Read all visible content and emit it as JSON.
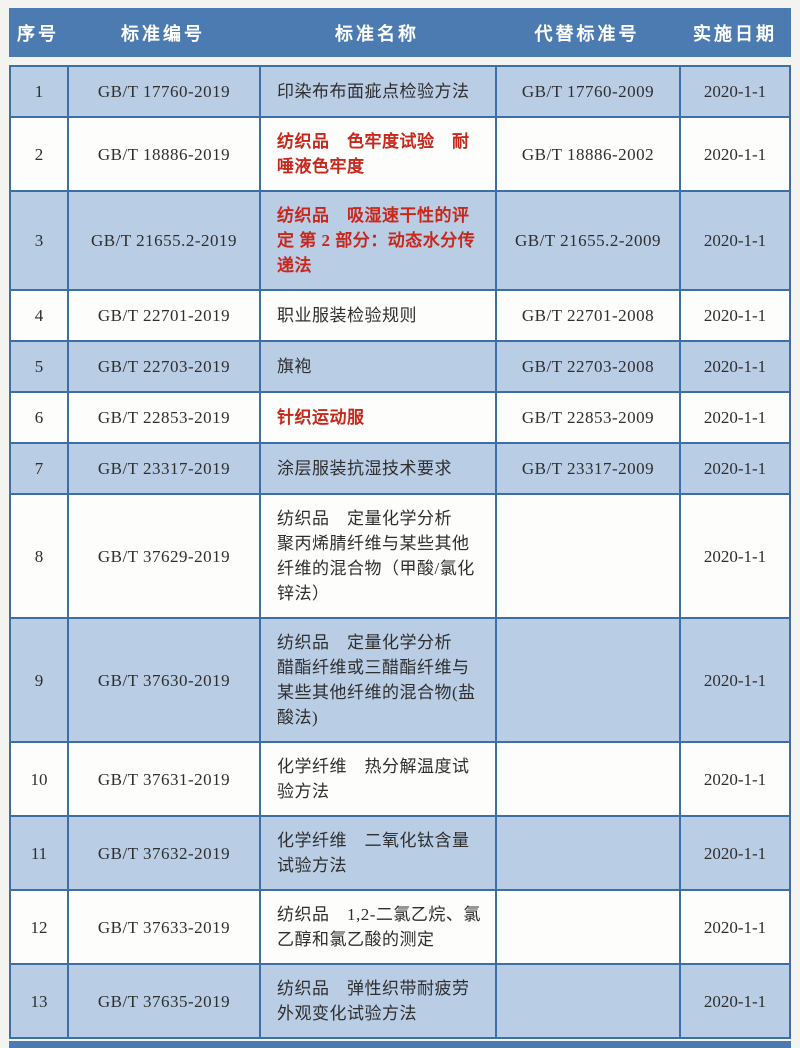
{
  "colors": {
    "header_bg": "#4b7bb1",
    "row_alt_bg": "#b9cde5",
    "row_bg": "#fdfdfc",
    "border": "#3d6fa6",
    "header_text": "#ffffff",
    "text": "#2e2e2e",
    "red_text": "#c8271c",
    "page_bg": "#f3f3ef",
    "bottom_bar": "#4b7bb1"
  },
  "table": {
    "columns": [
      {
        "key": "no",
        "label": "序号"
      },
      {
        "key": "code",
        "label": "标准编号"
      },
      {
        "key": "name",
        "label": "标准名称"
      },
      {
        "key": "replaces",
        "label": "代替标准号"
      },
      {
        "key": "date",
        "label": "实施日期"
      }
    ],
    "rows": [
      {
        "no": "1",
        "code": "GB/T 17760-2019",
        "name": "印染布布面疵点检验方法",
        "name_red": false,
        "replaces": "GB/T 17760-2009",
        "date": "2020-1-1"
      },
      {
        "no": "2",
        "code": "GB/T 18886-2019",
        "name": "纺织品　色牢度试验　耐唾液色牢度",
        "name_red": true,
        "replaces": "GB/T 18886-2002",
        "date": "2020-1-1"
      },
      {
        "no": "3",
        "code": "GB/T 21655.2-2019",
        "name": "纺织品　吸湿速干性的评定 第 2 部分：动态水分传递法",
        "name_red": true,
        "replaces": "GB/T 21655.2-2009",
        "date": "2020-1-1"
      },
      {
        "no": "4",
        "code": "GB/T 22701-2019",
        "name": "职业服装检验规则",
        "name_red": false,
        "replaces": "GB/T 22701-2008",
        "date": "2020-1-1"
      },
      {
        "no": "5",
        "code": "GB/T 22703-2019",
        "name": "旗袍",
        "name_red": false,
        "replaces": "GB/T 22703-2008",
        "date": "2020-1-1"
      },
      {
        "no": "6",
        "code": "GB/T 22853-2019",
        "name": "针织运动服",
        "name_red": true,
        "replaces": "GB/T 22853-2009",
        "date": "2020-1-1"
      },
      {
        "no": "7",
        "code": "GB/T 23317-2019",
        "name": "涂层服装抗湿技术要求",
        "name_red": false,
        "replaces": "GB/T 23317-2009",
        "date": "2020-1-1"
      },
      {
        "no": "8",
        "code": "GB/T 37629-2019",
        "name": "纺织品　定量化学分析　聚丙烯腈纤维与某些其他纤维的混合物（甲酸/氯化锌法）",
        "name_red": false,
        "replaces": "",
        "date": "2020-1-1"
      },
      {
        "no": "9",
        "code": "GB/T 37630-2019",
        "name": "纺织品　定量化学分析　醋酯纤维或三醋酯纤维与某些其他纤维的混合物(盐酸法)",
        "name_red": false,
        "replaces": "",
        "date": "2020-1-1"
      },
      {
        "no": "10",
        "code": "GB/T 37631-2019",
        "name": "化学纤维　热分解温度试验方法",
        "name_red": false,
        "replaces": "",
        "date": "2020-1-1"
      },
      {
        "no": "11",
        "code": "GB/T 37632-2019",
        "name": "化学纤维　二氧化钛含量试验方法",
        "name_red": false,
        "replaces": "",
        "date": "2020-1-1"
      },
      {
        "no": "12",
        "code": "GB/T 37633-2019",
        "name": "纺织品　1,2-二氯乙烷、氯乙醇和氯乙酸的测定",
        "name_red": false,
        "replaces": "",
        "date": "2020-1-1"
      },
      {
        "no": "13",
        "code": "GB/T 37635-2019",
        "name": "纺织品　弹性织带耐疲劳外观变化试验方法",
        "name_red": false,
        "replaces": "",
        "date": "2020-1-1"
      }
    ]
  }
}
